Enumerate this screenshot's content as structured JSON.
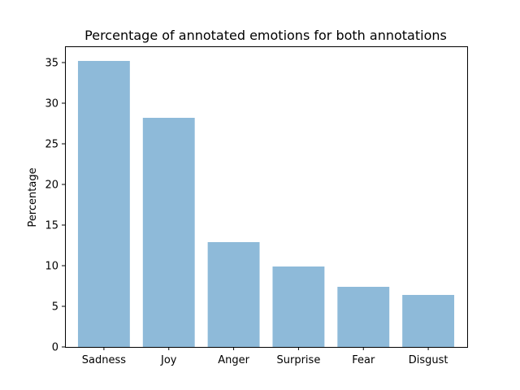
{
  "chart_data": {
    "type": "bar",
    "title": "Percentage of annotated emotions for both annotations",
    "xlabel": "",
    "ylabel": "Percentage",
    "categories": [
      "Sadness",
      "Joy",
      "Anger",
      "Surprise",
      "Fear",
      "Disgust"
    ],
    "values": [
      35.2,
      28.2,
      12.9,
      9.9,
      7.4,
      6.4
    ],
    "ylim": [
      0,
      37
    ],
    "yticks": [
      0,
      5,
      10,
      15,
      20,
      25,
      30,
      35
    ],
    "grid": false,
    "bar_color": "#8ebad9"
  }
}
